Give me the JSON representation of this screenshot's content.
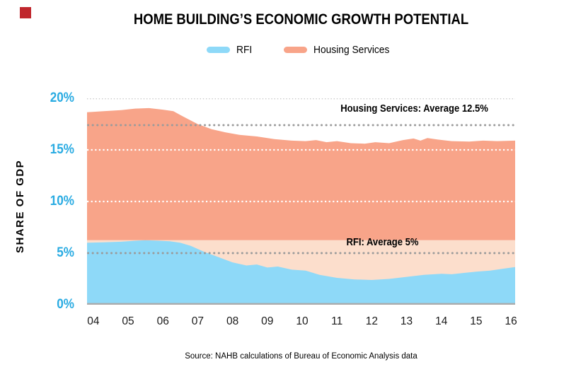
{
  "brand": {
    "mark_color": "#C0272D"
  },
  "header": {
    "title": "HOME BUILDING’S ECONOMIC GROWTH POTENTIAL"
  },
  "legend": {
    "items": [
      {
        "label": "RFI",
        "color": "#8ED9F8"
      },
      {
        "label": "Housing Services",
        "color": "#F8A489"
      }
    ]
  },
  "y_axis": {
    "title": "SHARE OF GDP",
    "tick_color": "#29ABE2"
  },
  "footer": {
    "source": "Source: NAHB calculations of Bureau of Economic Analysis data"
  },
  "chart_data": {
    "type": "area",
    "title": "HOME BUILDING’S ECONOMIC GROWTH POTENTIAL",
    "xlabel": "",
    "ylabel": "SHARE OF GDP",
    "x_domain": [
      2003.82,
      2016.12
    ],
    "y_domain": [
      0,
      20
    ],
    "legend_position": "top",
    "x_ticks": [
      {
        "label": "04",
        "x": 2004
      },
      {
        "label": "05",
        "x": 2005
      },
      {
        "label": "06",
        "x": 2006
      },
      {
        "label": "07",
        "x": 2007
      },
      {
        "label": "08",
        "x": 2008
      },
      {
        "label": "09",
        "x": 2009
      },
      {
        "label": "10",
        "x": 2010
      },
      {
        "label": "11",
        "x": 2011
      },
      {
        "label": "12",
        "x": 2012
      },
      {
        "label": "13",
        "x": 2013
      },
      {
        "label": "14",
        "x": 2014
      },
      {
        "label": "15",
        "x": 2015
      },
      {
        "label": "16",
        "x": 2016
      }
    ],
    "y_ticks": [
      {
        "label": "0%",
        "value": 0
      },
      {
        "label": "5%",
        "value": 5
      },
      {
        "label": "10%",
        "value": 10
      },
      {
        "label": "15%",
        "value": 15
      },
      {
        "label": "20%",
        "value": 20
      }
    ],
    "grid": {
      "white_dotted_lines": [
        15,
        10
      ],
      "top_dotted_line": 20,
      "baseline": 0
    },
    "series": [
      {
        "name": "RFI",
        "color": "#8ED9F8",
        "points": [
          [
            2003.82,
            6.0
          ],
          [
            2004.3,
            6.05
          ],
          [
            2004.8,
            6.1
          ],
          [
            2005.2,
            6.2
          ],
          [
            2005.5,
            6.25
          ],
          [
            2005.9,
            6.2
          ],
          [
            2006.2,
            6.15
          ],
          [
            2006.5,
            6.0
          ],
          [
            2006.8,
            5.7
          ],
          [
            2007.2,
            5.1
          ],
          [
            2007.6,
            4.6
          ],
          [
            2008.0,
            4.1
          ],
          [
            2008.4,
            3.8
          ],
          [
            2008.7,
            3.9
          ],
          [
            2009.0,
            3.6
          ],
          [
            2009.3,
            3.7
          ],
          [
            2009.7,
            3.4
          ],
          [
            2010.1,
            3.3
          ],
          [
            2010.5,
            2.9
          ],
          [
            2011.0,
            2.6
          ],
          [
            2011.5,
            2.45
          ],
          [
            2012.0,
            2.4
          ],
          [
            2012.5,
            2.5
          ],
          [
            2013.0,
            2.7
          ],
          [
            2013.5,
            2.9
          ],
          [
            2014.0,
            3.0
          ],
          [
            2014.3,
            2.95
          ],
          [
            2014.7,
            3.1
          ],
          [
            2015.0,
            3.2
          ],
          [
            2015.4,
            3.3
          ],
          [
            2015.8,
            3.5
          ],
          [
            2016.12,
            3.65
          ]
        ]
      },
      {
        "name": "Housing Services",
        "color": "#F8A489",
        "band_color": "#FCDECC",
        "stack_base": 6.25,
        "stack_top_points": [
          [
            2003.82,
            18.65
          ],
          [
            2004.3,
            18.75
          ],
          [
            2004.8,
            18.85
          ],
          [
            2005.2,
            19.0
          ],
          [
            2005.6,
            19.05
          ],
          [
            2006.0,
            18.9
          ],
          [
            2006.3,
            18.75
          ],
          [
            2006.6,
            18.2
          ],
          [
            2007.0,
            17.5
          ],
          [
            2007.4,
            17.0
          ],
          [
            2007.8,
            16.7
          ],
          [
            2008.2,
            16.45
          ],
          [
            2008.7,
            16.3
          ],
          [
            2009.2,
            16.05
          ],
          [
            2009.7,
            15.9
          ],
          [
            2010.1,
            15.85
          ],
          [
            2010.4,
            15.95
          ],
          [
            2010.7,
            15.75
          ],
          [
            2011.0,
            15.85
          ],
          [
            2011.4,
            15.65
          ],
          [
            2011.8,
            15.6
          ],
          [
            2012.1,
            15.75
          ],
          [
            2012.5,
            15.65
          ],
          [
            2012.9,
            15.95
          ],
          [
            2013.2,
            16.1
          ],
          [
            2013.4,
            15.9
          ],
          [
            2013.6,
            16.15
          ],
          [
            2013.9,
            16.0
          ],
          [
            2014.3,
            15.85
          ],
          [
            2014.8,
            15.8
          ],
          [
            2015.2,
            15.9
          ],
          [
            2015.6,
            15.85
          ],
          [
            2016.12,
            15.9
          ]
        ]
      }
    ],
    "reference_lines": [
      {
        "label": "Housing Services: Average 12.5%",
        "value": 17.4
      },
      {
        "label": "RFI: Average 5%",
        "value": 5
      }
    ]
  }
}
